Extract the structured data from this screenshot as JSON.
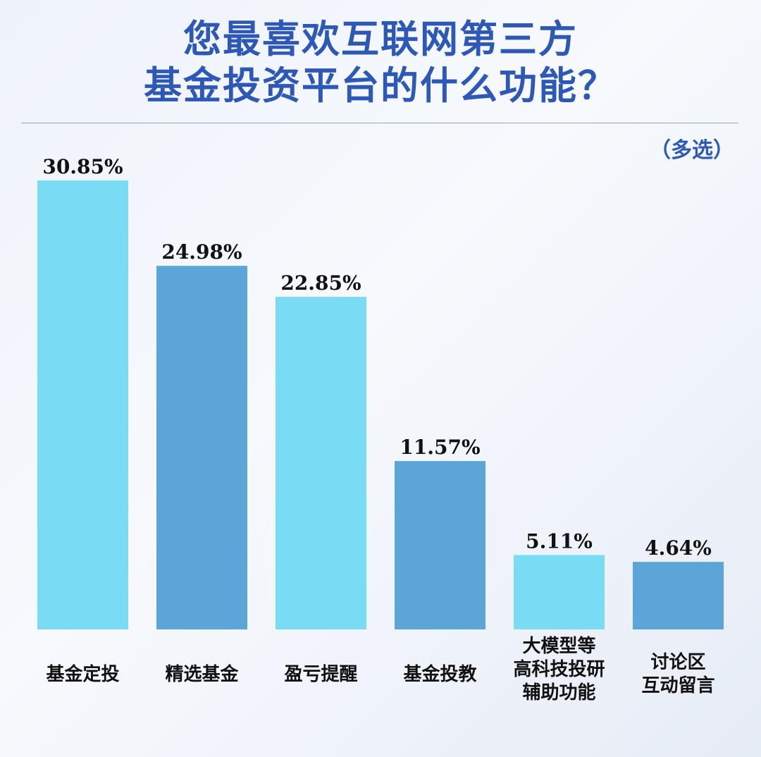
{
  "header": {
    "title_line1": "您最喜欢互联网第三方",
    "title_line2": "基金投资平台的什么功能？",
    "subtitle": "（多选）"
  },
  "chart_data": {
    "type": "bar",
    "categories": [
      [
        "基金定投"
      ],
      [
        "精选基金"
      ],
      [
        "盈亏提醒"
      ],
      [
        "基金投教"
      ],
      [
        "大模型等",
        "高科技投研",
        "辅助功能"
      ],
      [
        "讨论区",
        "互动留言"
      ]
    ],
    "values": [
      30.85,
      24.98,
      22.85,
      11.57,
      5.11,
      4.64
    ],
    "value_labels": [
      "30.85%",
      "24.98%",
      "22.85%",
      "11.57%",
      "5.11%",
      "4.64%"
    ],
    "unit": "%",
    "ylim": [
      0,
      30.85
    ],
    "grid": false,
    "legend": "none",
    "colors": [
      "#79dbf4",
      "#5ba5d9",
      "#79dbf4",
      "#5ba5d9",
      "#79dbf4",
      "#5ba5d9"
    ]
  }
}
